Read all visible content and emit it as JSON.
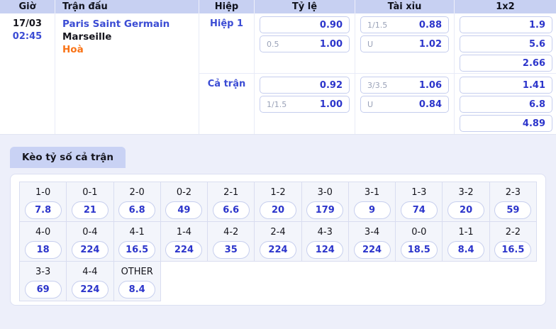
{
  "colors": {
    "page_bg": "#edeffa",
    "header_bg": "#c7d0f2",
    "tab_bg": "#c9d2f4",
    "accent_blue": "#2c35cb",
    "link_blue": "#3b4cd4",
    "draw_orange": "#f97316",
    "handicap_gray": "#9aa2b8"
  },
  "match_table": {
    "headers": {
      "time": "Giờ",
      "match": "Trận đấu",
      "half": "Hiệp",
      "rate": "Tỷ lệ",
      "over_under": "Tài xỉu",
      "x12": "1x2"
    },
    "date": "17/03",
    "time": "02:45",
    "home_team": "Paris Saint Germain",
    "away_team": "Marseille",
    "draw_label": "Hoà",
    "periods": [
      {
        "label": "Hiệp 1",
        "rate": [
          {
            "hcap": "",
            "odds": "0.90"
          },
          {
            "hcap": "0.5",
            "odds": "1.00"
          }
        ],
        "over_under": [
          {
            "hcap": "1/1.5",
            "odds": "0.88"
          },
          {
            "hcap": "U",
            "odds": "1.02"
          }
        ],
        "x12": [
          "1.9",
          "5.6",
          "2.66"
        ]
      },
      {
        "label": "Cả trận",
        "rate": [
          {
            "hcap": "",
            "odds": "0.92"
          },
          {
            "hcap": "1/1.5",
            "odds": "1.00"
          }
        ],
        "over_under": [
          {
            "hcap": "3/3.5",
            "odds": "1.06"
          },
          {
            "hcap": "U",
            "odds": "0.84"
          }
        ],
        "x12": [
          "1.41",
          "6.8",
          "4.89"
        ]
      }
    ]
  },
  "score_board": {
    "tab_label": "Kèo tỷ số cả trận",
    "scores": [
      {
        "score": "1-0",
        "odds": "7.8"
      },
      {
        "score": "0-1",
        "odds": "21"
      },
      {
        "score": "2-0",
        "odds": "6.8"
      },
      {
        "score": "0-2",
        "odds": "49"
      },
      {
        "score": "2-1",
        "odds": "6.6"
      },
      {
        "score": "1-2",
        "odds": "20"
      },
      {
        "score": "3-0",
        "odds": "179"
      },
      {
        "score": "3-1",
        "odds": "9"
      },
      {
        "score": "1-3",
        "odds": "74"
      },
      {
        "score": "3-2",
        "odds": "20"
      },
      {
        "score": "2-3",
        "odds": "59"
      },
      {
        "score": "4-0",
        "odds": "18"
      },
      {
        "score": "0-4",
        "odds": "224"
      },
      {
        "score": "4-1",
        "odds": "16.5"
      },
      {
        "score": "1-4",
        "odds": "224"
      },
      {
        "score": "4-2",
        "odds": "35"
      },
      {
        "score": "2-4",
        "odds": "224"
      },
      {
        "score": "4-3",
        "odds": "124"
      },
      {
        "score": "3-4",
        "odds": "224"
      },
      {
        "score": "0-0",
        "odds": "18.5"
      },
      {
        "score": "1-1",
        "odds": "8.4"
      },
      {
        "score": "2-2",
        "odds": "16.5"
      },
      {
        "score": "3-3",
        "odds": "69"
      },
      {
        "score": "4-4",
        "odds": "224"
      },
      {
        "score": "OTHER",
        "odds": "8.4"
      }
    ]
  }
}
